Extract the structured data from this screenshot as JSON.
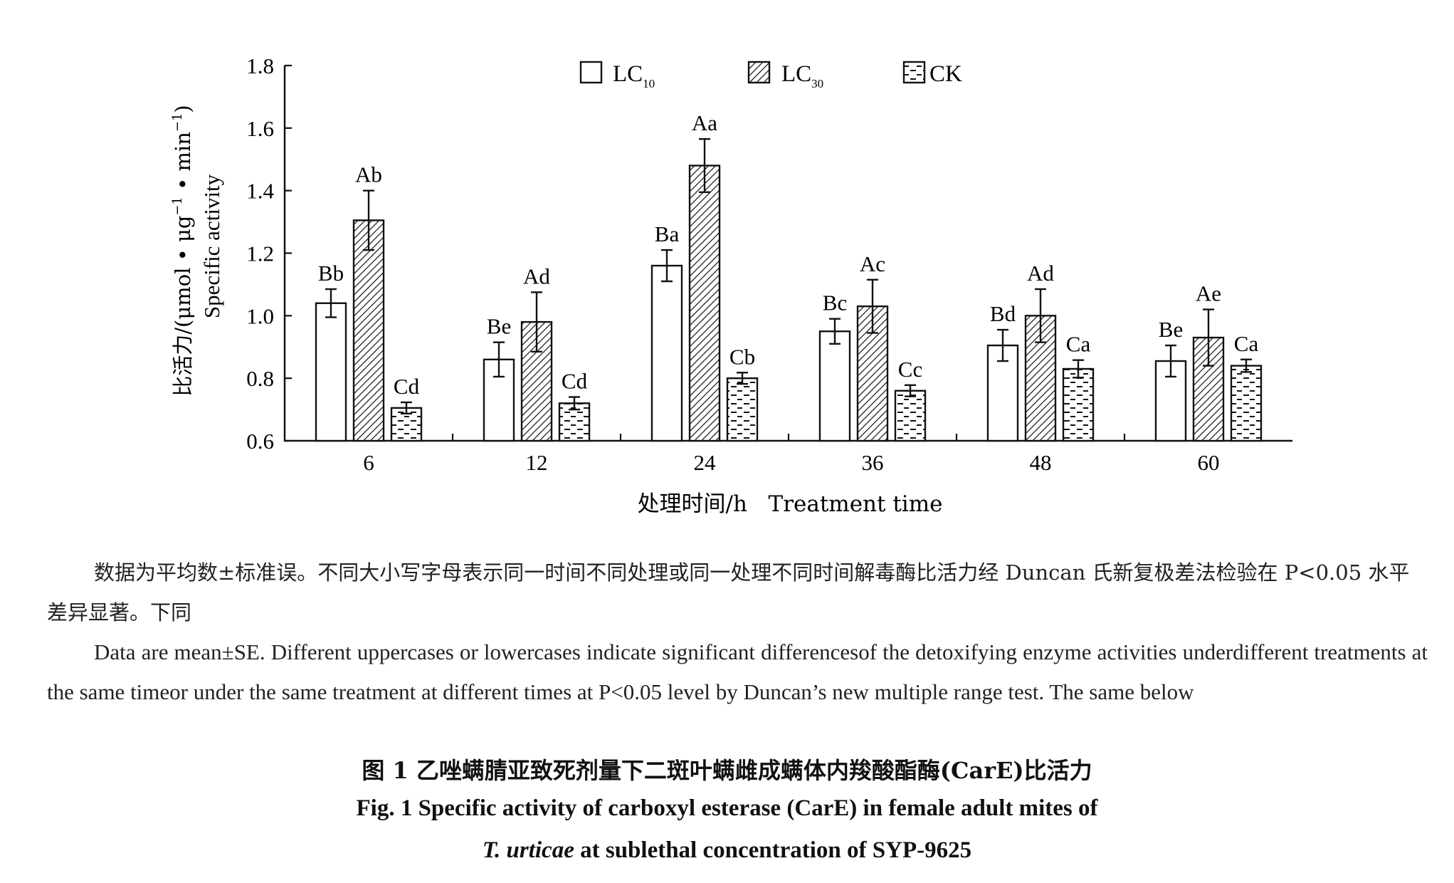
{
  "chart_data": {
    "type": "bar",
    "categories": [
      "6",
      "12",
      "24",
      "36",
      "48",
      "60"
    ],
    "series": [
      {
        "name": "LC10",
        "legend_main": "LC",
        "legend_sub": "10",
        "pattern": "open",
        "values": [
          1.04,
          0.86,
          1.16,
          0.95,
          0.905,
          0.855
        ],
        "errors": [
          0.045,
          0.055,
          0.05,
          0.04,
          0.05,
          0.05
        ],
        "labels": [
          "Bb",
          "Be",
          "Ba",
          "Bc",
          "Bd",
          "Be"
        ]
      },
      {
        "name": "LC30",
        "legend_main": "LC",
        "legend_sub": "30",
        "pattern": "diagonal-hatch",
        "values": [
          1.305,
          0.98,
          1.48,
          1.03,
          1.0,
          0.93
        ],
        "errors": [
          0.095,
          0.095,
          0.085,
          0.085,
          0.085,
          0.09
        ],
        "labels": [
          "Ab",
          "Ad",
          "Aa",
          "Ac",
          "Ad",
          "Ae"
        ]
      },
      {
        "name": "CK",
        "legend_main": "CK",
        "legend_sub": "",
        "pattern": "dashed-lines",
        "values": [
          0.705,
          0.72,
          0.8,
          0.76,
          0.83,
          0.84
        ],
        "errors": [
          0.018,
          0.02,
          0.018,
          0.018,
          0.028,
          0.02
        ],
        "labels": [
          "Cd",
          "Cd",
          "Cb",
          "Cc",
          "Ca",
          "Ca"
        ]
      }
    ],
    "ylim": [
      0.6,
      1.8
    ],
    "yticks": [
      0.6,
      0.8,
      1.0,
      1.2,
      1.4,
      1.6,
      1.8
    ],
    "ytick_labels": [
      "0.6",
      "0.8",
      "1.0",
      "1.2",
      "1.4",
      "1.6",
      "1.8"
    ],
    "ylabel_cn": "比活力/(μmol • μg",
    "ylabel_cn_sup1": "−1",
    "ylabel_cn_mid": " • min",
    "ylabel_cn_sup2": "−1",
    "ylabel_cn_end": ")",
    "ylabel_en": "Specific activity",
    "xlabel": "处理时间/h   Treatment time",
    "legend_position": "top-center",
    "grid": false
  },
  "notes": {
    "cn": "数据为平均数±标准误。不同大小写字母表示同一时间不同处理或同一处理不同时间解毒酶比活力经 Duncan 氏新复极差法检验在 P<0.05 水平差异显著。下同",
    "en": "Data are mean±SE. Different uppercases or lowercases indicate significant differencesof the detoxifying enzyme activities underdifferent treatments at the same timeor under the same treatment at different times at P<0.05 level by Duncan’s new multiple range test. The same below"
  },
  "caption": {
    "cn": "图 1   乙唑螨腈亚致死剂量下二斑叶螨雌成螨体内羧酸酯酶(CarE)比活力",
    "en_line1": "Fig. 1   Specific activity of carboxyl esterase (CarE) in female adult mites of",
    "en_line2_italic": "T. urticae",
    "en_line2_rest": " at sublethal concentration of SYP-9625"
  }
}
